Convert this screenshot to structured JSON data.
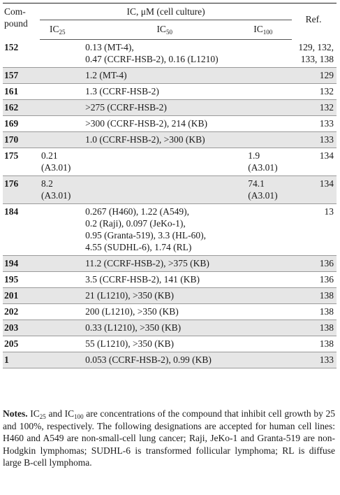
{
  "header": {
    "compound": "Com-pound",
    "compound_l1": "Com-",
    "compound_l2": "pound",
    "ic_group": "IC, μM (cell culture)",
    "ref": "Ref.",
    "ic25": "IC",
    "ic25_sub": "25",
    "ic50": "IC",
    "ic50_sub": "50",
    "ic100": "IC",
    "ic100_sub": "100"
  },
  "rows": [
    {
      "compound": "152",
      "ic25": "",
      "ic50": [
        "0.13 (MT-4),",
        "0.47 (CCRF-HSB-2), 0.16 (L1210)"
      ],
      "ic100": "",
      "ref": [
        "129, 132,",
        "133, 138"
      ]
    },
    {
      "compound": "157",
      "ic25": "",
      "ic50": [
        "1.2 (MT-4)"
      ],
      "ic100": "",
      "ref": [
        "129"
      ]
    },
    {
      "compound": "161",
      "ic25": "",
      "ic50": [
        "1.3 (CCRF-HSB-2)"
      ],
      "ic100": "",
      "ref": [
        "132"
      ]
    },
    {
      "compound": "162",
      "ic25": "",
      "ic50": [
        ">275 (CCRF-HSB-2)"
      ],
      "ic100": "",
      "ref": [
        "132"
      ]
    },
    {
      "compound": "169",
      "ic25": "",
      "ic50": [
        ">300 (CCRF-HSB-2), 214 (KB)"
      ],
      "ic100": "",
      "ref": [
        "133"
      ]
    },
    {
      "compound": "170",
      "ic25": "",
      "ic50": [
        "1.0 (CCRF-HSB-2), >300 (KB)"
      ],
      "ic100": "",
      "ref": [
        "133"
      ]
    },
    {
      "compound": "175",
      "ic25": [
        "0.21",
        "(A3.01)"
      ],
      "ic50": [],
      "ic100": [
        "1.9",
        "(A3.01)"
      ],
      "ref": [
        "134"
      ]
    },
    {
      "compound": "176",
      "ic25": [
        "8.2",
        "(A3.01)"
      ],
      "ic50": [],
      "ic100": [
        "74.1",
        "(A3.01)"
      ],
      "ref": [
        "134"
      ]
    },
    {
      "compound": "184",
      "ic25": "",
      "ic50": [
        "0.267 (H460), 1.22 (A549),",
        "0.2 (Raji), 0.097 (JeKo-1),",
        "0.95 (Granta-519), 3.3 (HL-60),",
        "4.55 (SUDHL-6), 1.74 (RL)"
      ],
      "ic100": "",
      "ref": [
        "13"
      ]
    },
    {
      "compound": "194",
      "ic25": "",
      "ic50": [
        "11.2 (CCRF-HSB-2), >375 (KB)"
      ],
      "ic100": "",
      "ref": [
        "136"
      ]
    },
    {
      "compound": "195",
      "ic25": "",
      "ic50": [
        "3.5 (CCRF-HSB-2), 141 (KB)"
      ],
      "ic100": "",
      "ref": [
        "136"
      ]
    },
    {
      "compound": "201",
      "ic25": "",
      "ic50": [
        "21 (L1210), >350 (KB)"
      ],
      "ic100": "",
      "ref": [
        "138"
      ]
    },
    {
      "compound": "202",
      "ic25": "",
      "ic50": [
        "200 (L1210), >350 (KB)"
      ],
      "ic100": "",
      "ref": [
        "138"
      ]
    },
    {
      "compound": "203",
      "ic25": "",
      "ic50": [
        "0.33 (L1210), >350 (KB)"
      ],
      "ic100": "",
      "ref": [
        "138"
      ]
    },
    {
      "compound": "205",
      "ic25": "",
      "ic50": [
        "55 (L1210), >350 (KB)"
      ],
      "ic100": "",
      "ref": [
        "138"
      ]
    },
    {
      "compound": "1",
      "ic25": "",
      "ic50": [
        "0.053 (CCRF-HSB-2), 0.99 (KB)"
      ],
      "ic100": "",
      "ref": [
        "133"
      ]
    }
  ],
  "shaded_rows": [
    1,
    3,
    5,
    7,
    9,
    11,
    13,
    15
  ],
  "notes": {
    "label": "Notes.",
    "p1": " IC",
    "p1_sub": "25",
    "p2": " and IC",
    "p2_sub": "100",
    "p3": " are concentrations of the compound that inhibit cell growth by 25 and 100%, respectively. The following designations are accepted for human cell lines: H460 and A549 are non-small-cell lung cancer; Raji, JeKo-1 and Granta-519 are non-Hodgkin lymphomas; SUDHL-6 is transformed follicular lymphoma; RL is diffuse large B-cell lymphoma."
  }
}
